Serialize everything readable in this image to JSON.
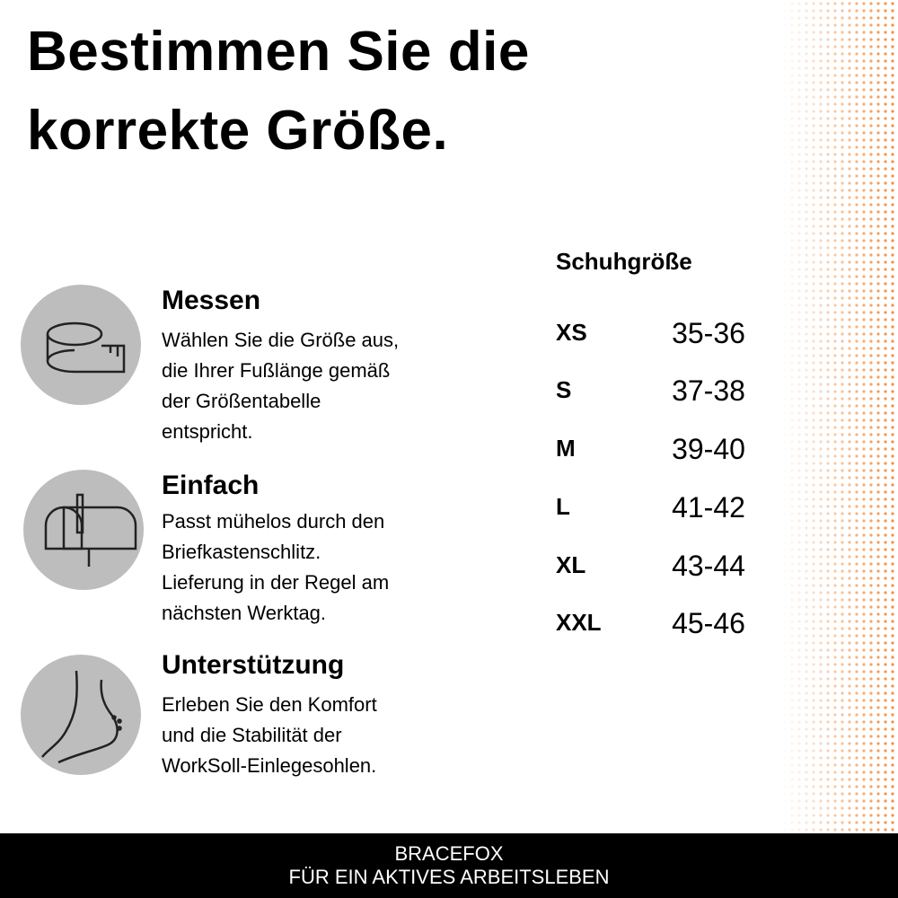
{
  "header": {
    "title_lines": [
      "Bestimmen Sie die",
      "korrekte Größe."
    ]
  },
  "features": [
    {
      "title": "Messen",
      "lines": [
        "Wählen Sie die Größe aus,",
        "die Ihrer Fußlänge gemäß",
        "der Größentabelle",
        "entspricht."
      ]
    },
    {
      "title": "Einfach",
      "lines": [
        "Passt mühelos durch den",
        "Briefkastenschlitz.",
        "Lieferung in der Regel am",
        "nächsten Werktag."
      ]
    },
    {
      "title": "Unterstützung",
      "lines": [
        "Erleben Sie den Komfort",
        "und die Stabilität der",
        "WorkSoll-Einlegesohlen."
      ]
    }
  ],
  "size_table": {
    "header": "Schuhgröße",
    "rows": [
      [
        "XS",
        "35-36"
      ],
      [
        "S",
        "37-38"
      ],
      [
        "M",
        "39-40"
      ],
      [
        "L",
        "41-42"
      ],
      [
        "XL",
        "43-44"
      ],
      [
        "XXL",
        "45-46"
      ]
    ]
  },
  "footer": {
    "lines": [
      "BRACEFOX",
      "FÜR EIN AKTIVES ARBEITSLEBEN"
    ]
  }
}
